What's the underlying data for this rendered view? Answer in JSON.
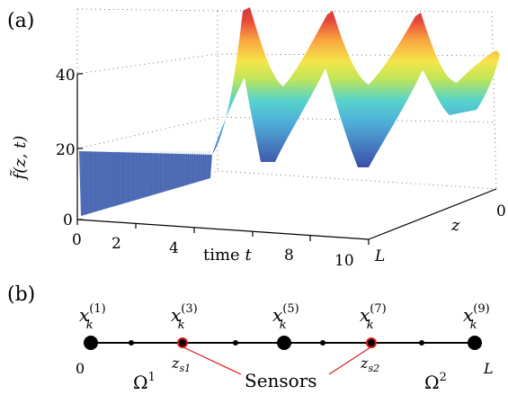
{
  "panel_a_label": "(a)",
  "panel_b_label": "(b)",
  "chart_data": {
    "type": "surface",
    "title": "",
    "zlabel": "f̃(z, t)",
    "xlabel_text": "time",
    "xlabel_var": "t",
    "ylabel": "z",
    "x_ticks": [
      "0",
      "2",
      "4",
      "6",
      "8",
      "10"
    ],
    "y_ticks": [
      "0",
      "L"
    ],
    "z_ticks": [
      "0",
      "20",
      "40"
    ],
    "xlim": [
      0,
      10
    ],
    "zlim": [
      0,
      45
    ],
    "grid": true,
    "colormap": "jet",
    "ridge_peaks": [
      {
        "t": 2.5,
        "value": 45
      },
      {
        "t": 5.3,
        "value": 45
      },
      {
        "t": 8.1,
        "value": 45
      },
      {
        "t": 10,
        "value": 33
      }
    ],
    "initial_value": 19
  },
  "diagram": {
    "nodes": [
      {
        "sup": "(1)",
        "type": "major"
      },
      {
        "type": "minor"
      },
      {
        "sup": "(3)",
        "type": "sensor",
        "sensor_label": "s1"
      },
      {
        "type": "minor"
      },
      {
        "sup": "(5)",
        "type": "major"
      },
      {
        "type": "minor"
      },
      {
        "sup": "(7)",
        "type": "sensor",
        "sensor_label": "s2"
      },
      {
        "type": "minor"
      },
      {
        "sup": "(9)",
        "type": "major"
      }
    ],
    "node_var": "x",
    "node_sub": "k",
    "sensor_var": "z",
    "left_end": "0",
    "right_end": "L",
    "domain_left": "Ω",
    "domain_left_sup": "1",
    "domain_right": "Ω",
    "domain_right_sup": "2",
    "sensors_label": "Sensors",
    "sensor_color": "#d7191c"
  }
}
